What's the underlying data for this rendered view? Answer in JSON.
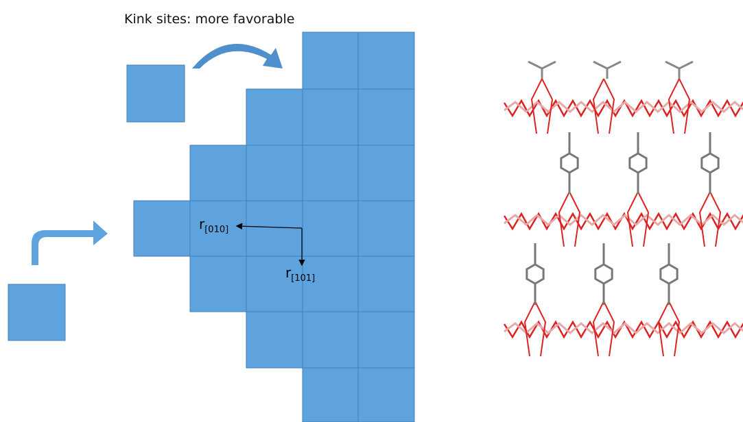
{
  "title": "Kink sites: more favorable",
  "labels": [
    {
      "symbol": "r",
      "subscript": "[010]"
    },
    {
      "symbol": "r",
      "subscript": "[101]"
    }
  ]
}
